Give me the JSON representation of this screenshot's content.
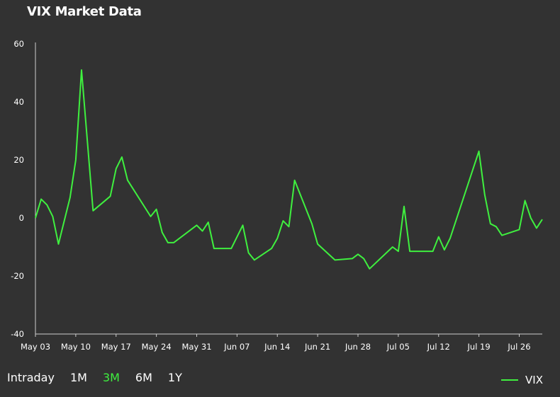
{
  "title": "VIX Market Data",
  "accent_color": "#3ff03f",
  "ranges": [
    {
      "label": "Intraday",
      "active": false
    },
    {
      "label": "1M",
      "active": false
    },
    {
      "label": "3M",
      "active": true
    },
    {
      "label": "6M",
      "active": false
    },
    {
      "label": "1Y",
      "active": false
    }
  ],
  "legend": {
    "label": "VIX"
  },
  "chart_data": {
    "type": "line",
    "title": "VIX Market Data",
    "xlabel": "",
    "ylabel": "",
    "ylim": [
      -40,
      60
    ],
    "yticks": [
      60,
      40,
      20,
      0,
      -20,
      -40
    ],
    "xticks": [
      "May 03",
      "May 10",
      "May 17",
      "May 24",
      "May 31",
      "Jun 07",
      "Jun 14",
      "Jun 21",
      "Jun 28",
      "Jul 05",
      "Jul 12",
      "Jul 19",
      "Jul 26"
    ],
    "grid": false,
    "legend_position": "bottom-right",
    "series": [
      {
        "name": "VIX",
        "color": "#3ff03f",
        "points": [
          [
            "May 03",
            0
          ],
          [
            "May 04",
            6.5
          ],
          [
            "May 05",
            4.5
          ],
          [
            "May 06",
            0.5
          ],
          [
            "May 07",
            -9
          ],
          [
            "May 09",
            7
          ],
          [
            "May 10",
            20
          ],
          [
            "May 11",
            51
          ],
          [
            "May 13",
            2.5
          ],
          [
            "May 16",
            7.5
          ],
          [
            "May 17",
            17
          ],
          [
            "May 18",
            21
          ],
          [
            "May 19",
            13
          ],
          [
            "May 23",
            0.5
          ],
          [
            "May 24",
            3
          ],
          [
            "May 25",
            -5
          ],
          [
            "May 26",
            -8.5
          ],
          [
            "May 27",
            -8.5
          ],
          [
            "May 31",
            -2.5
          ],
          [
            "Jun 01",
            -4.5
          ],
          [
            "Jun 02",
            -1.5
          ],
          [
            "Jun 03",
            -10.5
          ],
          [
            "Jun 06",
            -10.5
          ],
          [
            "Jun 08",
            -2.5
          ],
          [
            "Jun 09",
            -12
          ],
          [
            "Jun 10",
            -14.5
          ],
          [
            "Jun 13",
            -10.5
          ],
          [
            "Jun 14",
            -7
          ],
          [
            "Jun 15",
            -1
          ],
          [
            "Jun 16",
            -3
          ],
          [
            "Jun 17",
            13
          ],
          [
            "Jun 20",
            -2
          ],
          [
            "Jun 21",
            -9
          ],
          [
            "Jun 24",
            -14.5
          ],
          [
            "Jun 27",
            -14
          ],
          [
            "Jun 28",
            -12.5
          ],
          [
            "Jun 29",
            -14
          ],
          [
            "Jun 30",
            -17.5
          ],
          [
            "Jul 04",
            -10
          ],
          [
            "Jul 05",
            -11.5
          ],
          [
            "Jul 06",
            4
          ],
          [
            "Jul 07",
            -11.5
          ],
          [
            "Jul 11",
            -11.5
          ],
          [
            "Jul 12",
            -6.5
          ],
          [
            "Jul 13",
            -11
          ],
          [
            "Jul 14",
            -7
          ],
          [
            "Jul 19",
            23
          ],
          [
            "Jul 20",
            8
          ],
          [
            "Jul 21",
            -2
          ],
          [
            "Jul 22",
            -3
          ],
          [
            "Jul 23",
            -6
          ],
          [
            "Jul 26",
            -4
          ],
          [
            "Jul 27",
            6
          ],
          [
            "Jul 28",
            0
          ],
          [
            "Jul 29",
            -3.5
          ],
          [
            "Jul 30",
            -0.5
          ]
        ]
      }
    ]
  }
}
